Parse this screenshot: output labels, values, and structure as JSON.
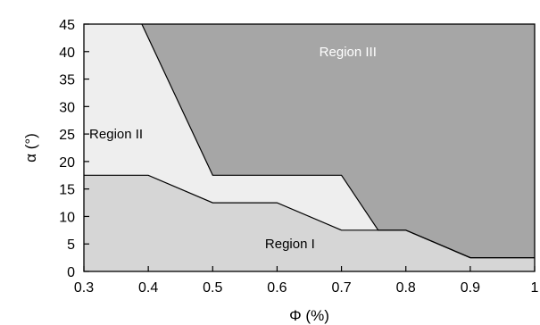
{
  "chart_data": {
    "type": "area",
    "xlabel": "Φ (%)",
    "ylabel": "α (°)",
    "xlim": [
      0.3,
      1.0
    ],
    "ylim": [
      0,
      45
    ],
    "x_ticks": [
      "0.3",
      "0.4",
      "0.5",
      "0.6",
      "0.7",
      "0.8",
      "0.9",
      "1"
    ],
    "y_ticks": [
      "0",
      "5",
      "10",
      "15",
      "20",
      "25",
      "30",
      "35",
      "40",
      "45"
    ],
    "grid": false,
    "legend": "none",
    "boundaries": {
      "region1_top": [
        [
          0.3,
          17.5
        ],
        [
          0.4,
          17.5
        ],
        [
          0.5,
          12.5
        ],
        [
          0.6,
          12.5
        ],
        [
          0.7,
          7.5
        ],
        [
          0.8,
          7.5
        ],
        [
          0.9,
          2.5
        ],
        [
          1.0,
          2.5
        ]
      ],
      "region3_bottom": [
        [
          0.39,
          45
        ],
        [
          0.5,
          17.5
        ],
        [
          0.7,
          17.5
        ],
        [
          0.757,
          7.5
        ],
        [
          0.8,
          7.5
        ],
        [
          0.9,
          2.5
        ],
        [
          1.0,
          2.5
        ]
      ]
    },
    "regions": [
      {
        "label": "Region I",
        "x": 0.62,
        "y": 5,
        "fill": "#d6d6d6"
      },
      {
        "label": "Region II",
        "x": 0.35,
        "y": 25,
        "fill": "#eeeeee"
      },
      {
        "label": "Region III",
        "x": 0.71,
        "y": 40,
        "fill": "#a6a6a6"
      }
    ]
  }
}
